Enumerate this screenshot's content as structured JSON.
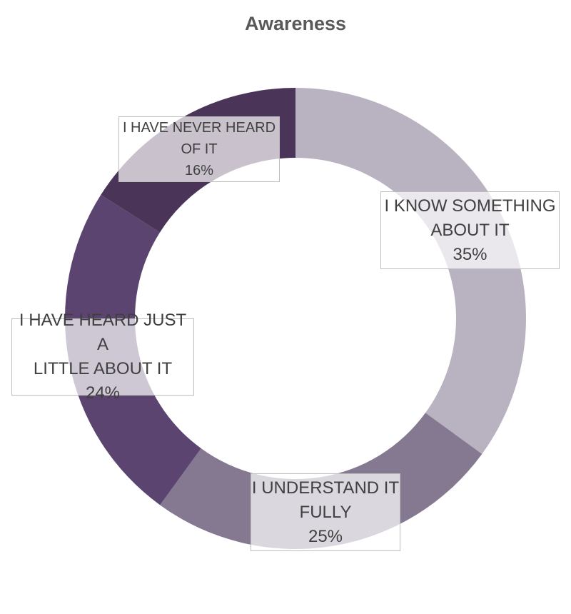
{
  "chart_data": {
    "type": "pie",
    "variant": "donut",
    "title": "Awareness",
    "categories": [
      "I KNOW SOMETHING ABOUT IT",
      "I UNDERSTAND IT FULLY",
      "I HAVE HEARD JUST A LITTLE ABOUT IT",
      "I HAVE NEVER HEARD OF IT"
    ],
    "values": [
      35,
      25,
      24,
      16
    ],
    "colors": [
      "#b9b3c1",
      "#857891",
      "#5b4470",
      "#4a3558"
    ],
    "data_labels": [
      {
        "lines": [
          "I KNOW SOMETHING",
          "ABOUT IT"
        ],
        "value": "35%"
      },
      {
        "lines": [
          "I UNDERSTAND IT",
          "FULLY"
        ],
        "value": "25%"
      },
      {
        "lines": [
          "I HAVE HEARD JUST A",
          "LITTLE ABOUT IT"
        ],
        "value": "24%"
      },
      {
        "lines": [
          "I HAVE NEVER HEARD",
          "OF IT"
        ],
        "value": "16%"
      }
    ],
    "legend": "none",
    "start_angle": "12 o'clock",
    "direction": "clockwise"
  }
}
